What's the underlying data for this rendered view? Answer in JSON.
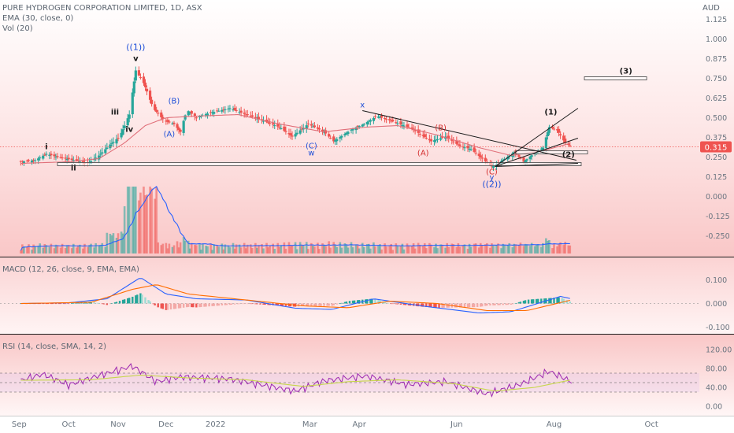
{
  "header": {
    "symbol_line": "PURE HYDROGEN CORPORATION LIMITED, 1D, ASX",
    "ema_label": "EMA (30, close, 0)",
    "vol_label": "Vol (20)",
    "currency": "AUD"
  },
  "panes": {
    "macd_label": "MACD (12, 26, close, 9, EMA, EMA)",
    "rsi_label": "RSI (14, close, SMA, 14, 2)"
  },
  "last_price": "0.315",
  "colors": {
    "background_top": "#ffffff",
    "background_tint": "#f9c9c9",
    "up_candle": "#26a69a",
    "down_candle": "#ef5350",
    "ema_line": "#e0707a",
    "volume_ma": "#2962ff",
    "macd_line": "#2962ff",
    "signal_line": "#ff6d00",
    "rsi_line": "#9c27b0",
    "rsi_ma": "#c6d64a",
    "wave_blue": "#1e4fd8",
    "wave_red": "#d32f2f",
    "wave_black": "#1a1a1a",
    "price_label_bg": "#ef5350"
  },
  "chart_data": [
    {
      "type": "candlestick",
      "title": "PURE HYDROGEN CORPORATION LIMITED, 1D, ASX",
      "x_ticks": [
        "Sep",
        "Oct",
        "Nov",
        "Dec",
        "2022",
        "Mar",
        "Apr",
        "Jun",
        "Aug",
        "Oct"
      ],
      "y_ticks": [
        "1.125",
        "1.000",
        "0.875",
        "0.750",
        "0.625",
        "0.500",
        "0.375",
        "0.250",
        "0.125",
        "0.000",
        "-0.125",
        "-0.250"
      ],
      "ylim": [
        -0.3,
        1.2
      ],
      "date_range": [
        "2021-09-01",
        "2022-10-31"
      ],
      "price_path": [
        [
          "2021-09-01",
          0.22
        ],
        [
          "2021-09-10",
          0.23
        ],
        [
          "2021-09-17",
          0.27
        ],
        [
          "2021-09-24",
          0.25
        ],
        [
          "2021-10-04",
          0.23
        ],
        [
          "2021-10-13",
          0.21
        ],
        [
          "2021-10-20",
          0.26
        ],
        [
          "2021-10-27",
          0.33
        ],
        [
          "2021-11-02",
          0.38
        ],
        [
          "2021-11-08",
          0.52
        ],
        [
          "2021-11-12",
          0.8
        ],
        [
          "2021-11-17",
          0.72
        ],
        [
          "2021-11-23",
          0.56
        ],
        [
          "2021-11-30",
          0.48
        ],
        [
          "2021-12-06",
          0.46
        ],
        [
          "2021-12-10",
          0.41
        ],
        [
          "2021-12-14",
          0.55
        ],
        [
          "2021-12-20",
          0.5
        ],
        [
          "2021-12-28",
          0.53
        ],
        [
          "2022-01-10",
          0.56
        ],
        [
          "2022-01-20",
          0.52
        ],
        [
          "2022-01-31",
          0.48
        ],
        [
          "2022-02-10",
          0.44
        ],
        [
          "2022-02-18",
          0.38
        ],
        [
          "2022-02-28",
          0.46
        ],
        [
          "2022-03-10",
          0.41
        ],
        [
          "2022-03-16",
          0.35
        ],
        [
          "2022-03-28",
          0.43
        ],
        [
          "2022-04-04",
          0.46
        ],
        [
          "2022-04-12",
          0.51
        ],
        [
          "2022-04-21",
          0.48
        ],
        [
          "2022-05-04",
          0.43
        ],
        [
          "2022-05-16",
          0.35
        ],
        [
          "2022-05-25",
          0.38
        ],
        [
          "2022-06-03",
          0.32
        ],
        [
          "2022-06-10",
          0.3
        ],
        [
          "2022-06-17",
          0.24
        ],
        [
          "2022-06-23",
          0.19
        ],
        [
          "2022-06-30",
          0.23
        ],
        [
          "2022-07-07",
          0.28
        ],
        [
          "2022-07-13",
          0.22
        ],
        [
          "2022-07-19",
          0.27
        ],
        [
          "2022-07-25",
          0.31
        ],
        [
          "2022-07-29",
          0.44
        ],
        [
          "2022-08-03",
          0.42
        ],
        [
          "2022-08-08",
          0.34
        ],
        [
          "2022-08-12",
          0.315
        ]
      ],
      "ema_30": [
        [
          "2021-09-01",
          0.21
        ],
        [
          "2021-10-01",
          0.22
        ],
        [
          "2021-10-20",
          0.24
        ],
        [
          "2021-11-05",
          0.34
        ],
        [
          "2021-11-18",
          0.45
        ],
        [
          "2021-12-01",
          0.5
        ],
        [
          "2021-12-20",
          0.51
        ],
        [
          "2022-01-15",
          0.52
        ],
        [
          "2022-02-10",
          0.46
        ],
        [
          "2022-03-10",
          0.41
        ],
        [
          "2022-04-05",
          0.44
        ],
        [
          "2022-04-25",
          0.45
        ],
        [
          "2022-05-20",
          0.39
        ],
        [
          "2022-06-15",
          0.31
        ],
        [
          "2022-07-05",
          0.26
        ],
        [
          "2022-07-25",
          0.29
        ],
        [
          "2022-08-12",
          0.34
        ]
      ]
    },
    {
      "type": "bar",
      "title": "Vol (20)",
      "note": "volume histogram with 20-period moving average; spike in early November 2021"
    },
    {
      "type": "line",
      "title": "MACD (12, 26, close, 9, EMA, EMA)",
      "y_ticks": [
        "0.100",
        "0.000",
        "-0.100"
      ],
      "ylim": [
        -0.12,
        0.14
      ],
      "macd": [
        [
          "2021-09-01",
          0.0
        ],
        [
          "2021-10-01",
          0.003
        ],
        [
          "2021-10-25",
          0.02
        ],
        [
          "2021-11-15",
          0.11
        ],
        [
          "2021-12-01",
          0.04
        ],
        [
          "2021-12-20",
          0.02
        ],
        [
          "2022-01-20",
          0.015
        ],
        [
          "2022-02-20",
          -0.02
        ],
        [
          "2022-03-15",
          -0.025
        ],
        [
          "2022-04-10",
          0.02
        ],
        [
          "2022-05-10",
          -0.01
        ],
        [
          "2022-06-15",
          -0.04
        ],
        [
          "2022-07-05",
          -0.035
        ],
        [
          "2022-08-05",
          0.03
        ],
        [
          "2022-08-12",
          0.02
        ]
      ],
      "signal": [
        [
          "2021-09-01",
          0.0
        ],
        [
          "2021-10-15",
          0.005
        ],
        [
          "2021-11-10",
          0.06
        ],
        [
          "2021-11-25",
          0.08
        ],
        [
          "2021-12-15",
          0.04
        ],
        [
          "2022-01-20",
          0.015
        ],
        [
          "2022-02-25",
          -0.01
        ],
        [
          "2022-03-25",
          -0.018
        ],
        [
          "2022-04-20",
          0.01
        ],
        [
          "2022-05-20",
          0.0
        ],
        [
          "2022-06-20",
          -0.03
        ],
        [
          "2022-07-15",
          -0.03
        ],
        [
          "2022-08-12",
          0.015
        ]
      ]
    },
    {
      "type": "line",
      "title": "RSI (14, close, SMA, 14, 2)",
      "y_ticks": [
        "120.00",
        "80.00",
        "40.00",
        "0.00"
      ],
      "ylim": [
        -10,
        125
      ],
      "bands": [
        30,
        50,
        70
      ],
      "rsi": [
        [
          "2021-09-01",
          55
        ],
        [
          "2021-09-15",
          68
        ],
        [
          "2021-10-01",
          45
        ],
        [
          "2021-10-15",
          60
        ],
        [
          "2021-11-10",
          85
        ],
        [
          "2021-11-25",
          52
        ],
        [
          "2021-12-10",
          62
        ],
        [
          "2022-01-10",
          58
        ],
        [
          "2022-02-01",
          44
        ],
        [
          "2022-02-20",
          32
        ],
        [
          "2022-03-10",
          54
        ],
        [
          "2022-04-05",
          64
        ],
        [
          "2022-05-01",
          46
        ],
        [
          "2022-05-25",
          52
        ],
        [
          "2022-06-20",
          26
        ],
        [
          "2022-07-10",
          45
        ],
        [
          "2022-07-29",
          74
        ],
        [
          "2022-08-12",
          52
        ]
      ],
      "rsi_ma": [
        [
          "2021-09-01",
          55
        ],
        [
          "2021-10-15",
          56
        ],
        [
          "2021-11-15",
          66
        ],
        [
          "2021-12-15",
          60
        ],
        [
          "2022-01-20",
          56
        ],
        [
          "2022-02-25",
          42
        ],
        [
          "2022-03-25",
          52
        ],
        [
          "2022-04-25",
          56
        ],
        [
          "2022-05-30",
          48
        ],
        [
          "2022-06-25",
          32
        ],
        [
          "2022-07-20",
          40
        ],
        [
          "2022-08-12",
          56
        ]
      ]
    }
  ],
  "annotations": {
    "wave_labels": [
      {
        "text": "i",
        "date": "2021-09-17",
        "price": 0.3,
        "color": "black"
      },
      {
        "text": "ii",
        "date": "2021-10-04",
        "price": 0.165,
        "color": "black"
      },
      {
        "text": "iii",
        "date": "2021-10-30",
        "price": 0.52,
        "color": "black"
      },
      {
        "text": "iv",
        "date": "2021-11-08",
        "price": 0.41,
        "color": "black"
      },
      {
        "text": "v",
        "date": "2021-11-12",
        "price": 0.86,
        "color": "black"
      },
      {
        "text": "((1))",
        "date": "2021-11-12",
        "price": 0.93,
        "color": "blue"
      },
      {
        "text": "(A)",
        "date": "2021-12-03",
        "price": 0.38,
        "color": "blue"
      },
      {
        "text": "(B)",
        "date": "2021-12-06",
        "price": 0.59,
        "color": "blue"
      },
      {
        "text": "(C)",
        "date": "2022-03-02",
        "price": 0.305,
        "color": "blue"
      },
      {
        "text": "w",
        "date": "2022-03-02",
        "price": 0.26,
        "color": "blue"
      },
      {
        "text": "x",
        "date": "2022-04-03",
        "price": 0.565,
        "color": "blue"
      },
      {
        "text": "(A)",
        "date": "2022-05-11",
        "price": 0.26,
        "color": "red"
      },
      {
        "text": "(B)",
        "date": "2022-05-22",
        "price": 0.42,
        "color": "red"
      },
      {
        "text": "(C)",
        "date": "2022-06-23",
        "price": 0.14,
        "color": "red"
      },
      {
        "text": "y",
        "date": "2022-06-23",
        "price": 0.105,
        "color": "blue"
      },
      {
        "text": "((2))",
        "date": "2022-06-23",
        "price": 0.06,
        "color": "blue"
      },
      {
        "text": "(1)",
        "date": "2022-07-30",
        "price": 0.52,
        "color": "black"
      },
      {
        "text": "(2)",
        "date": "2022-08-10",
        "price": 0.25,
        "color": "black"
      },
      {
        "text": "(3)",
        "date": "2022-09-15",
        "price": 0.78,
        "color": "black"
      }
    ],
    "trend_lines": [
      {
        "from": [
          "2022-04-03",
          0.545
        ],
        "to": [
          "2022-08-15",
          0.23
        ]
      },
      {
        "from": [
          "2022-06-25",
          0.19
        ],
        "to": [
          "2022-08-16",
          0.56
        ]
      },
      {
        "from": [
          "2022-06-25",
          0.19
        ],
        "to": [
          "2022-08-16",
          0.37
        ]
      },
      {
        "from": [
          "2022-06-25",
          0.19
        ],
        "to": [
          "2022-08-16",
          0.21
        ]
      }
    ],
    "boxes": [
      {
        "from": [
          "2021-09-24",
          0.215
        ],
        "to": [
          "2022-08-18",
          0.195
        ]
      },
      {
        "from": [
          "2022-07-08",
          0.29
        ],
        "to": [
          "2022-08-22",
          0.27
        ]
      },
      {
        "from": [
          "2022-08-20",
          0.76
        ],
        "to": [
          "2022-09-28",
          0.74
        ]
      }
    ]
  }
}
